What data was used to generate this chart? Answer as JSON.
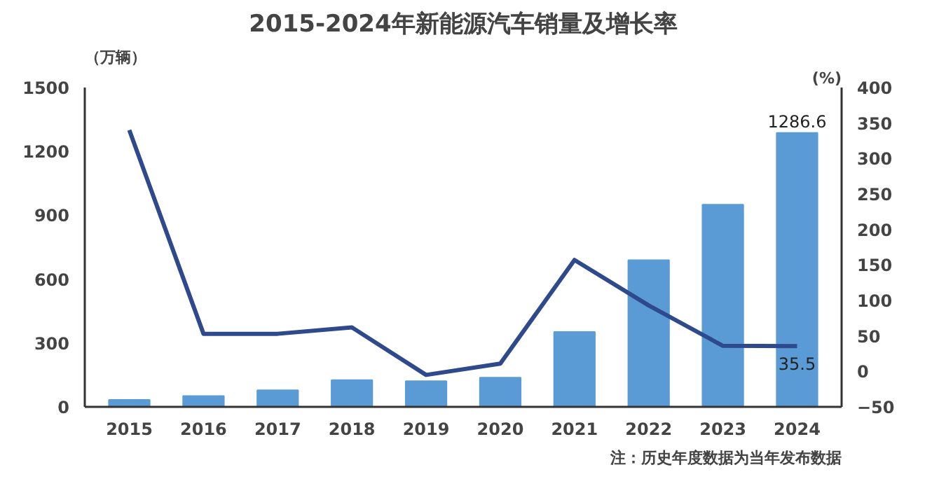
{
  "chart_data": {
    "type": "bar",
    "title": "2015-2024年新能源汽车销量及增长率",
    "ylabel": "（万辆）",
    "y2label": "(%)",
    "categories": [
      "2015",
      "2016",
      "2017",
      "2018",
      "2019",
      "2020",
      "2021",
      "2022",
      "2023",
      "2024"
    ],
    "series": [
      {
        "color": "#5b9bd5",
        "values": [
          33,
          51,
          78,
          126,
          121,
          137,
          352,
          689,
          950,
          1286.6
        ],
        "value_labels": [
          null,
          null,
          null,
          null,
          null,
          null,
          null,
          null,
          null,
          "1286.6"
        ]
      },
      {
        "type": "line",
        "axis": "y2",
        "color": "#2f4a8c",
        "values": [
          340,
          53,
          53,
          62,
          -5,
          11,
          157,
          93,
          36,
          35.5
        ],
        "value_labels": [
          null,
          null,
          null,
          null,
          null,
          null,
          null,
          null,
          null,
          "35.5"
        ]
      }
    ],
    "ylim": [
      0,
      1500
    ],
    "yticks": [
      0,
      300,
      600,
      900,
      1200,
      1500
    ],
    "y2lim": [
      -50,
      400
    ],
    "y2ticks": [
      -50,
      0,
      50,
      100,
      150,
      200,
      250,
      300,
      350,
      400
    ],
    "grid": false,
    "marker": "none",
    "line_style": "solid",
    "annotations": [
      "注：历史年度数据为当年发布数据"
    ]
  }
}
